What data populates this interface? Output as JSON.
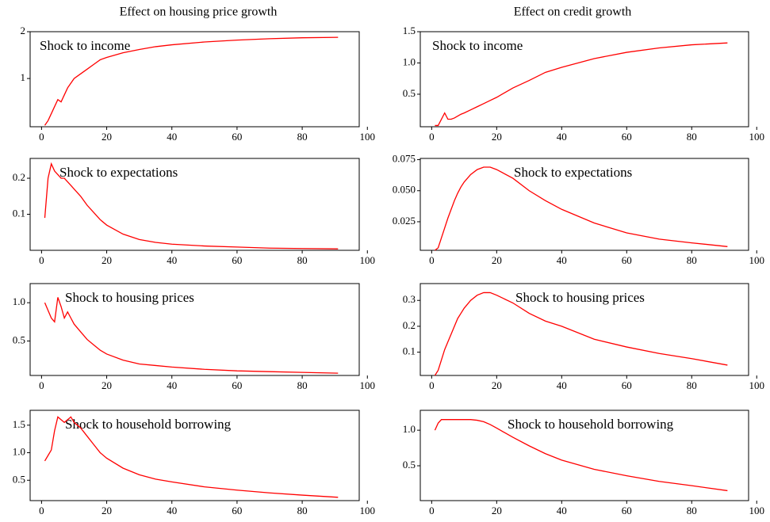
{
  "column_titles": [
    "Effect on housing price growth",
    "Effect on credit growth"
  ],
  "chart_data": [
    {
      "type": "line",
      "annotation": "Shock to income",
      "x": [
        1,
        2,
        3,
        4,
        5,
        6,
        7,
        8,
        9,
        10,
        12,
        14,
        16,
        18,
        20,
        25,
        30,
        35,
        40,
        50,
        60,
        70,
        80,
        91
      ],
      "values": [
        0,
        0.1,
        0.25,
        0.4,
        0.55,
        0.5,
        0.65,
        0.8,
        0.9,
        1.0,
        1.1,
        1.2,
        1.3,
        1.4,
        1.45,
        1.55,
        1.62,
        1.68,
        1.72,
        1.78,
        1.82,
        1.85,
        1.87,
        1.88
      ],
      "color": "#ff0000",
      "xlim": [
        -3.5,
        97.5
      ],
      "ylim": [
        -0.03,
        2.0
      ],
      "xticks": [
        0,
        20,
        40,
        60,
        80,
        100
      ],
      "yticks": [
        1,
        2
      ]
    },
    {
      "type": "line",
      "annotation": "Shock to income",
      "x": [
        1,
        2,
        3,
        4,
        5,
        6,
        7,
        8,
        9,
        10,
        12,
        14,
        16,
        18,
        20,
        25,
        30,
        35,
        40,
        50,
        60,
        70,
        80,
        91
      ],
      "values": [
        0,
        0,
        0.1,
        0.2,
        0.1,
        0.1,
        0.12,
        0.15,
        0.18,
        0.2,
        0.25,
        0.3,
        0.35,
        0.4,
        0.45,
        0.6,
        0.72,
        0.85,
        0.93,
        1.07,
        1.17,
        1.24,
        1.29,
        1.32
      ],
      "color": "#ff0000",
      "xlim": [
        -3.5,
        97.5
      ],
      "ylim": [
        -0.02,
        1.5
      ],
      "xticks": [
        0,
        20,
        40,
        60,
        80,
        100
      ],
      "yticks": [
        0.5,
        {
          "value": 1,
          "label": "1.0"
        },
        1.5
      ]
    },
    {
      "type": "line",
      "annotation": "Shock to expectations",
      "x": [
        1,
        2,
        3,
        4,
        5,
        6,
        7,
        8,
        9,
        10,
        12,
        14,
        16,
        18,
        20,
        25,
        30,
        35,
        40,
        50,
        60,
        70,
        80,
        91
      ],
      "values": [
        0.09,
        0.2,
        0.24,
        0.22,
        0.21,
        0.2,
        0.2,
        0.19,
        0.18,
        0.17,
        0.15,
        0.125,
        0.105,
        0.085,
        0.07,
        0.045,
        0.03,
        0.022,
        0.017,
        0.012,
        0.009,
        0.006,
        0.005,
        0.004
      ],
      "color": "#ff0000",
      "xlim": [
        -3.5,
        97.5
      ],
      "ylim": [
        0,
        0.255
      ],
      "xticks": [
        0,
        20,
        40,
        60,
        80,
        100
      ],
      "yticks": [
        0.1,
        0.2
      ]
    },
    {
      "type": "line",
      "annotation": "Shock to expectations",
      "x": [
        1,
        2,
        3,
        4,
        5,
        6,
        7,
        8,
        9,
        10,
        12,
        14,
        16,
        18,
        20,
        25,
        30,
        35,
        40,
        50,
        60,
        70,
        80,
        91
      ],
      "values": [
        0.002,
        0.004,
        0.012,
        0.02,
        0.028,
        0.035,
        0.042,
        0.048,
        0.053,
        0.057,
        0.063,
        0.067,
        0.069,
        0.069,
        0.067,
        0.06,
        0.05,
        0.042,
        0.035,
        0.024,
        0.016,
        0.011,
        0.008,
        0.005
      ],
      "color": "#ff0000",
      "xlim": [
        -3.5,
        97.5
      ],
      "ylim": [
        0.002,
        0.076
      ],
      "xticks": [
        0,
        20,
        40,
        60,
        80,
        100
      ],
      "yticks": [
        0.025,
        {
          "value": 0.05,
          "label": "0.050"
        },
        0.075
      ]
    },
    {
      "type": "line",
      "annotation": "Shock to housing prices",
      "x": [
        1,
        2,
        3,
        4,
        5,
        6,
        7,
        8,
        9,
        10,
        12,
        14,
        16,
        18,
        20,
        25,
        30,
        35,
        40,
        50,
        60,
        70,
        80,
        91
      ],
      "values": [
        1.0,
        0.9,
        0.8,
        0.75,
        1.07,
        0.95,
        0.8,
        0.88,
        0.8,
        0.72,
        0.62,
        0.52,
        0.45,
        0.38,
        0.33,
        0.25,
        0.2,
        0.18,
        0.16,
        0.13,
        0.11,
        0.1,
        0.09,
        0.08
      ],
      "color": "#ff0000",
      "xlim": [
        -3.5,
        97.5
      ],
      "ylim": [
        0.05,
        1.25
      ],
      "xticks": [
        0,
        20,
        40,
        60,
        80,
        100
      ],
      "yticks": [
        0.5,
        {
          "value": 1,
          "label": "1.0"
        }
      ]
    },
    {
      "type": "line",
      "annotation": "Shock to housing prices",
      "x": [
        1,
        2,
        3,
        4,
        5,
        6,
        7,
        8,
        9,
        10,
        12,
        14,
        16,
        18,
        20,
        25,
        30,
        35,
        40,
        50,
        60,
        70,
        80,
        91
      ],
      "values": [
        0.01,
        0.03,
        0.07,
        0.11,
        0.14,
        0.17,
        0.2,
        0.23,
        0.25,
        0.27,
        0.3,
        0.32,
        0.33,
        0.33,
        0.32,
        0.29,
        0.25,
        0.22,
        0.2,
        0.15,
        0.12,
        0.095,
        0.075,
        0.05
      ],
      "color": "#ff0000",
      "xlim": [
        -3.5,
        97.5
      ],
      "ylim": [
        0.01,
        0.365
      ],
      "xticks": [
        0,
        20,
        40,
        60,
        80,
        100
      ],
      "yticks": [
        0.1,
        0.2,
        0.3
      ]
    },
    {
      "type": "line",
      "annotation": "Shock to household borrowing",
      "x": [
        1,
        2,
        3,
        4,
        5,
        6,
        7,
        8,
        9,
        10,
        12,
        14,
        16,
        18,
        20,
        25,
        30,
        35,
        40,
        50,
        60,
        70,
        80,
        91
      ],
      "values": [
        0.85,
        0.95,
        1.05,
        1.4,
        1.65,
        1.6,
        1.55,
        1.6,
        1.65,
        1.55,
        1.45,
        1.3,
        1.15,
        1.0,
        0.9,
        0.72,
        0.6,
        0.52,
        0.47,
        0.38,
        0.32,
        0.27,
        0.23,
        0.19
      ],
      "color": "#ff0000",
      "xlim": [
        -3.5,
        97.5
      ],
      "ylim": [
        0.13,
        1.77
      ],
      "xticks": [
        0,
        20,
        40,
        60,
        80,
        100
      ],
      "yticks": [
        0.5,
        {
          "value": 1,
          "label": "1.0"
        },
        1.5
      ]
    },
    {
      "type": "line",
      "annotation": "Shock to household borrowing",
      "x": [
        1,
        2,
        3,
        4,
        5,
        6,
        7,
        8,
        9,
        10,
        12,
        14,
        16,
        18,
        20,
        25,
        30,
        35,
        40,
        50,
        60,
        70,
        80,
        91
      ],
      "values": [
        1.0,
        1.1,
        1.15,
        1.15,
        1.15,
        1.15,
        1.15,
        1.15,
        1.15,
        1.15,
        1.15,
        1.14,
        1.12,
        1.08,
        1.03,
        0.9,
        0.78,
        0.67,
        0.58,
        0.45,
        0.36,
        0.28,
        0.22,
        0.15
      ],
      "color": "#ff0000",
      "xlim": [
        -3.5,
        97.5
      ],
      "ylim": [
        0.01,
        1.28
      ],
      "xticks": [
        0,
        20,
        40,
        60,
        80,
        100
      ],
      "yticks": [
        0.5,
        {
          "value": 1,
          "label": "1.0"
        }
      ]
    }
  ]
}
